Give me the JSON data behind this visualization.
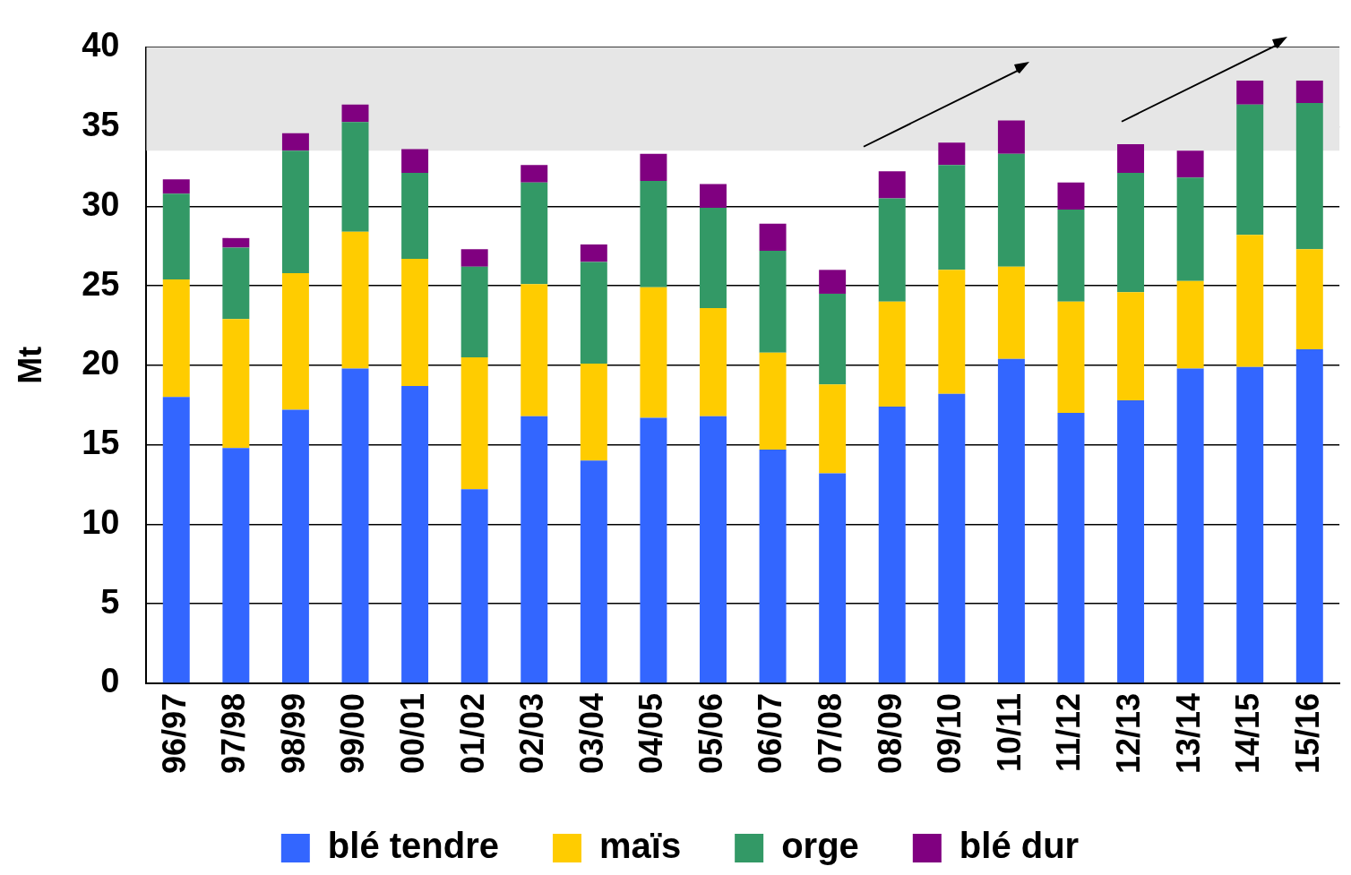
{
  "chart_data": {
    "type": "bar",
    "stacked": true,
    "ylabel": "Mt",
    "categories": [
      "96/97",
      "97/98",
      "98/99",
      "99/00",
      "00/01",
      "01/02",
      "02/03",
      "03/04",
      "04/05",
      "05/06",
      "06/07",
      "07/08",
      "08/09",
      "09/10",
      "10/11",
      "11/12",
      "12/13",
      "13/14",
      "14/15",
      "15/16"
    ],
    "series": [
      {
        "name": "blé tendre",
        "color": "#3366ff",
        "values": [
          18.0,
          14.8,
          17.2,
          19.8,
          18.7,
          12.2,
          16.8,
          14.0,
          16.7,
          16.8,
          14.7,
          13.2,
          17.4,
          18.2,
          20.4,
          17.0,
          17.8,
          19.8,
          19.9,
          21.0
        ]
      },
      {
        "name": "maïs",
        "color": "#ffcc00",
        "values": [
          7.4,
          8.1,
          8.6,
          8.6,
          8.0,
          8.3,
          8.3,
          6.1,
          8.2,
          6.8,
          6.1,
          5.6,
          6.6,
          7.8,
          5.8,
          7.0,
          6.8,
          5.5,
          8.3,
          6.3
        ]
      },
      {
        "name": "orge",
        "color": "#339966",
        "values": [
          5.4,
          4.5,
          7.7,
          6.9,
          5.4,
          5.7,
          6.4,
          6.4,
          6.7,
          6.3,
          6.4,
          5.7,
          6.5,
          6.6,
          7.1,
          5.8,
          7.5,
          6.5,
          8.2,
          9.2
        ]
      },
      {
        "name": "blé dur",
        "color": "#800080",
        "values": [
          0.9,
          0.6,
          1.1,
          1.1,
          1.5,
          1.1,
          1.1,
          1.1,
          1.7,
          1.5,
          1.7,
          1.5,
          1.7,
          1.4,
          2.1,
          1.7,
          1.8,
          1.7,
          1.5,
          1.4
        ]
      }
    ],
    "ylim": [
      0,
      40
    ],
    "yticks": [
      0,
      5,
      10,
      15,
      20,
      25,
      30,
      35,
      40
    ],
    "grid": "y",
    "legend": "bottom",
    "bands": [
      {
        "axis": "y",
        "from": 33.5,
        "to": 40,
        "color": "#e6e6e6"
      }
    ]
  }
}
